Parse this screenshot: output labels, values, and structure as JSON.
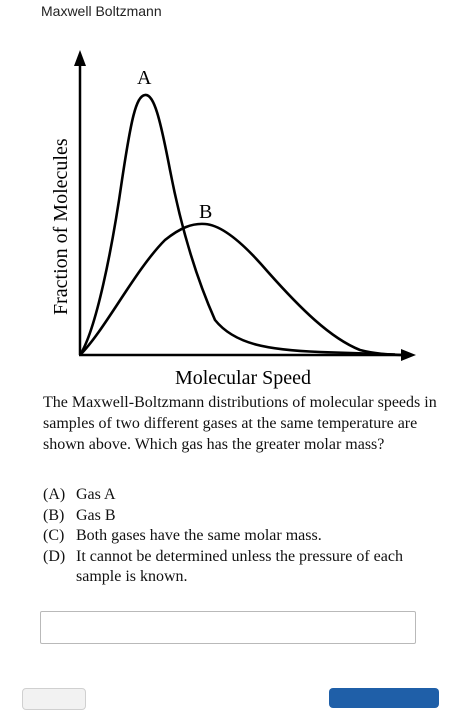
{
  "header": {
    "title": "Maxwell Boltzmann"
  },
  "figure": {
    "y_label": "Fraction of Molecules",
    "x_label": "Molecular Speed",
    "curve_a_label": "A",
    "curve_b_label": "B"
  },
  "question": {
    "text": "The Maxwell-Boltzmann distributions of molecular speeds in samples of two different gases at the same temperature are shown above. Which gas has the greater molar mass?"
  },
  "options": [
    {
      "letter": "(A)",
      "text": "Gas A"
    },
    {
      "letter": "(B)",
      "text": "Gas B"
    },
    {
      "letter": "(C)",
      "text": "Both gases have the same molar mass."
    },
    {
      "letter": "(D)",
      "text": "It cannot be determined unless the pressure of each sample is known."
    }
  ],
  "answer": {
    "value": ""
  }
}
